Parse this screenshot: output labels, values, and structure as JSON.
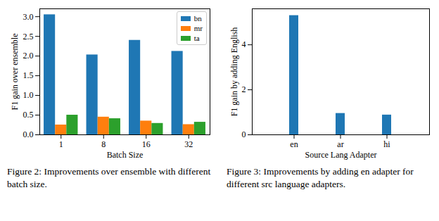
{
  "chart_data": [
    {
      "type": "bar",
      "caption": "Figure 2: Improvements over ensemble with different batch size.",
      "x_label": "Batch Size",
      "y_label": "F1 gain over ensemble",
      "categories": [
        "1",
        "8",
        "16",
        "32"
      ],
      "series": [
        {
          "name": "bn",
          "color": "#1f77b4",
          "values": [
            3.05,
            2.03,
            2.4,
            2.12
          ]
        },
        {
          "name": "mr",
          "color": "#ff7f0e",
          "values": [
            0.25,
            0.45,
            0.35,
            0.26
          ]
        },
        {
          "name": "ta",
          "color": "#2ca02c",
          "values": [
            0.5,
            0.41,
            0.29,
            0.32
          ]
        }
      ],
      "ylim": [
        0,
        3.2
      ],
      "yticks": [
        {
          "value": 0,
          "label": "0.0"
        },
        {
          "value": 0.5,
          "label": "0.5"
        },
        {
          "value": 1,
          "label": "1.0"
        },
        {
          "value": 1.5,
          "label": "1.5"
        },
        {
          "value": 2,
          "label": "2.0"
        },
        {
          "value": 2.5,
          "label": "2.5"
        },
        {
          "value": 3,
          "label": "3.0"
        }
      ],
      "grid": false,
      "legend": "upper right"
    },
    {
      "type": "bar",
      "caption": "Figure 3: Improvements by adding en adapter for different src language adapters.",
      "x_label": "Source Lang Adapter",
      "y_label": "F1 gain by adding English",
      "categories": [
        "en",
        "ar",
        "hi"
      ],
      "values": [
        5.3,
        0.95,
        0.88
      ],
      "color": "#1f77b4",
      "ylim": [
        0,
        5.6
      ],
      "yticks": [
        0,
        2,
        4
      ],
      "grid": false
    }
  ]
}
